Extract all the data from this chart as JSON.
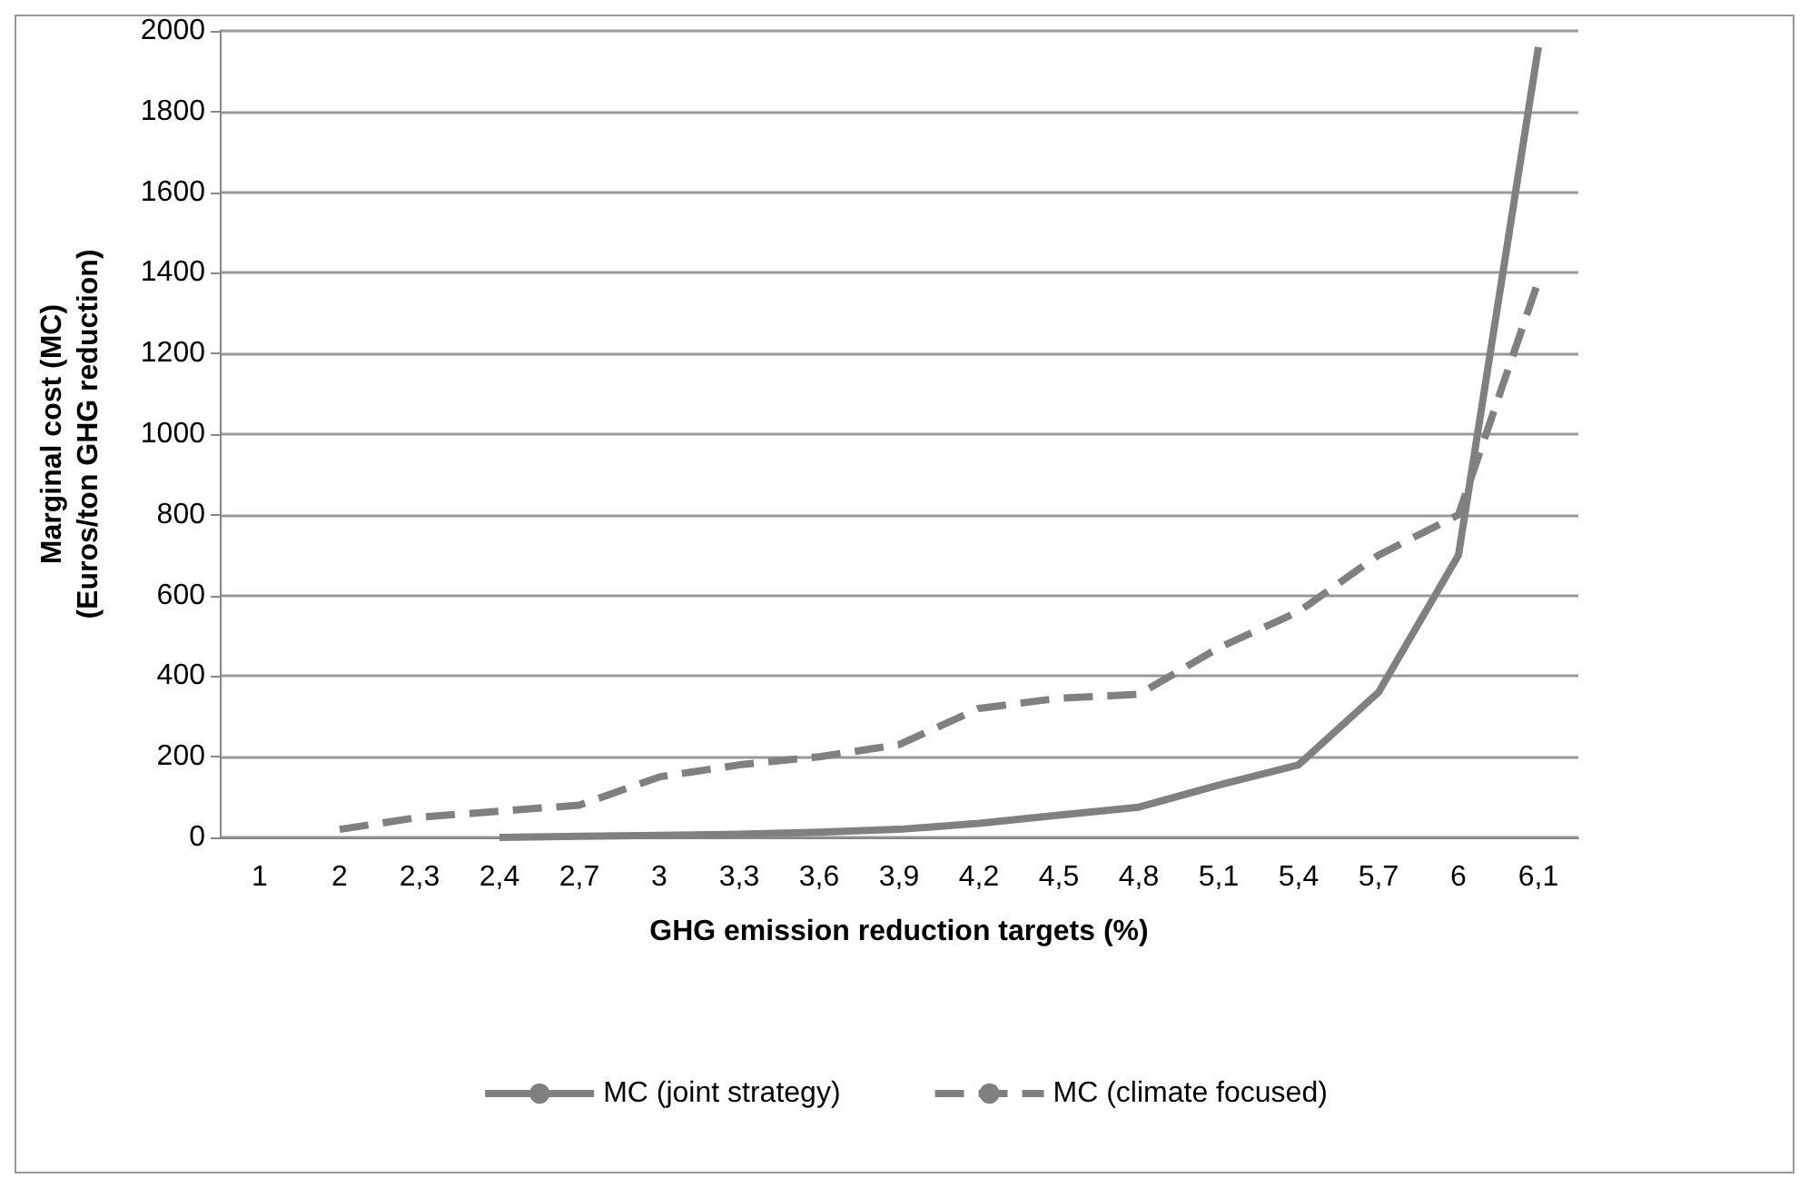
{
  "chart_data": {
    "type": "line",
    "xlabel": "GHG emission reduction targets (%)",
    "ylabel": "Marginal cost (MC)\n(Euros/ton GHG reduction)",
    "categories": [
      "1",
      "2",
      "2,3",
      "2,4",
      "2,7",
      "3",
      "3,3",
      "3,6",
      "3,9",
      "4,2",
      "4,5",
      "4,8",
      "5,1",
      "5,4",
      "5,7",
      "6",
      "6,1"
    ],
    "series": [
      {
        "name": "MC (joint strategy)",
        "color": "#808080",
        "line_style": "solid",
        "values": [
          null,
          null,
          null,
          0,
          3,
          5,
          8,
          13,
          20,
          35,
          55,
          75,
          130,
          180,
          360,
          700,
          1960
        ]
      },
      {
        "name": "MC (climate focused)",
        "color": "#808080",
        "line_style": "dashed",
        "values": [
          null,
          20,
          50,
          65,
          80,
          150,
          180,
          200,
          230,
          320,
          345,
          355,
          470,
          560,
          700,
          800,
          1380
        ]
      }
    ],
    "ylim": [
      0,
      2000
    ],
    "yticks": [
      0,
      200,
      400,
      600,
      800,
      1000,
      1200,
      1400,
      1600,
      1800,
      2000
    ],
    "grid": "y",
    "legend": "bottom",
    "marker": "none"
  }
}
